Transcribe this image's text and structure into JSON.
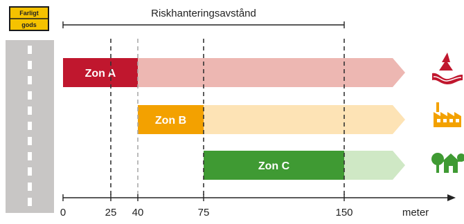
{
  "sign": {
    "line1": "Farligt",
    "line2": "gods",
    "bg": "#f5c200",
    "border": "#1a1a1a"
  },
  "header": {
    "label": "Riskhanteringsavstånd",
    "from": 0,
    "to": 150
  },
  "axis": {
    "unit": "meter",
    "ticks": [
      {
        "value": 0,
        "label": "0",
        "dashed": false
      },
      {
        "value": 25,
        "label": "25",
        "dashed": true,
        "color": "#333333"
      },
      {
        "value": 40,
        "label": "40",
        "dashed": true,
        "color": "#aaaaaa"
      },
      {
        "value": 75,
        "label": "75",
        "dashed": true,
        "color": "#333333"
      },
      {
        "value": 150,
        "label": "150",
        "dashed": true,
        "color": "#333333"
      }
    ]
  },
  "zones": [
    {
      "label": "Zon A",
      "start": 0,
      "end": 40,
      "color": "#c0172e",
      "fade": "#edb7b2",
      "icon": "road-curve-icon"
    },
    {
      "label": "Zon B",
      "start": 40,
      "end": 75,
      "color": "#f3a100",
      "fade": "#fde3b5",
      "icon": "factory-icon"
    },
    {
      "label": "Zon C",
      "start": 75,
      "end": 150,
      "color": "#3f9a33",
      "fade": "#cfe8c5",
      "icon": "house-trees-icon"
    }
  ],
  "road": {
    "color": "#c8c6c5",
    "marking": "#ffffff"
  }
}
